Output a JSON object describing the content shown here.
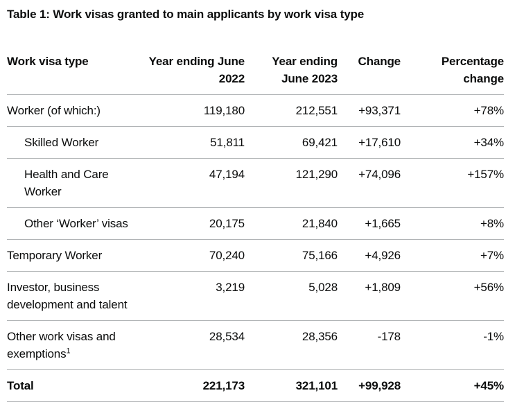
{
  "title": "Table 1: Work visas granted to main applicants by work visa type",
  "colors": {
    "text": "#0b0c0c",
    "border": "#b1b4b6",
    "background": "#ffffff"
  },
  "table": {
    "columns": [
      "Work visa type",
      "Year ending June 2022",
      "Year ending June 2023",
      "Change",
      "Percentage change"
    ],
    "rows": [
      {
        "label": "Worker (of which:)",
        "ye2022": "119,180",
        "ye2023": "212,551",
        "change": "+93,371",
        "pct": "+78%"
      },
      {
        "label": "Skilled Worker",
        "ye2022": "51,811",
        "ye2023": "69,421",
        "change": "+17,610",
        "pct": "+34%"
      },
      {
        "label": "Health and Care Worker",
        "ye2022": "47,194",
        "ye2023": "121,290",
        "change": "+74,096",
        "pct": "+157%"
      },
      {
        "label": "Other ‘Worker’ visas",
        "ye2022": "20,175",
        "ye2023": "21,840",
        "change": "+1,665",
        "pct": "+8%"
      },
      {
        "label": "Temporary Worker",
        "ye2022": "70,240",
        "ye2023": "75,166",
        "change": "+4,926",
        "pct": "+7%"
      },
      {
        "label": "Investor, business development and talent",
        "ye2022": "3,219",
        "ye2023": "5,028",
        "change": "+1,809",
        "pct": "+56%"
      },
      {
        "label": "Other work visas and exemptions",
        "sup": "1",
        "ye2022": "28,534",
        "ye2023": "28,356",
        "change": "-178",
        "pct": "-1%"
      },
      {
        "label": "Total",
        "ye2022": "221,173",
        "ye2023": "321,101",
        "change": "+99,928",
        "pct": "+45%"
      }
    ]
  }
}
